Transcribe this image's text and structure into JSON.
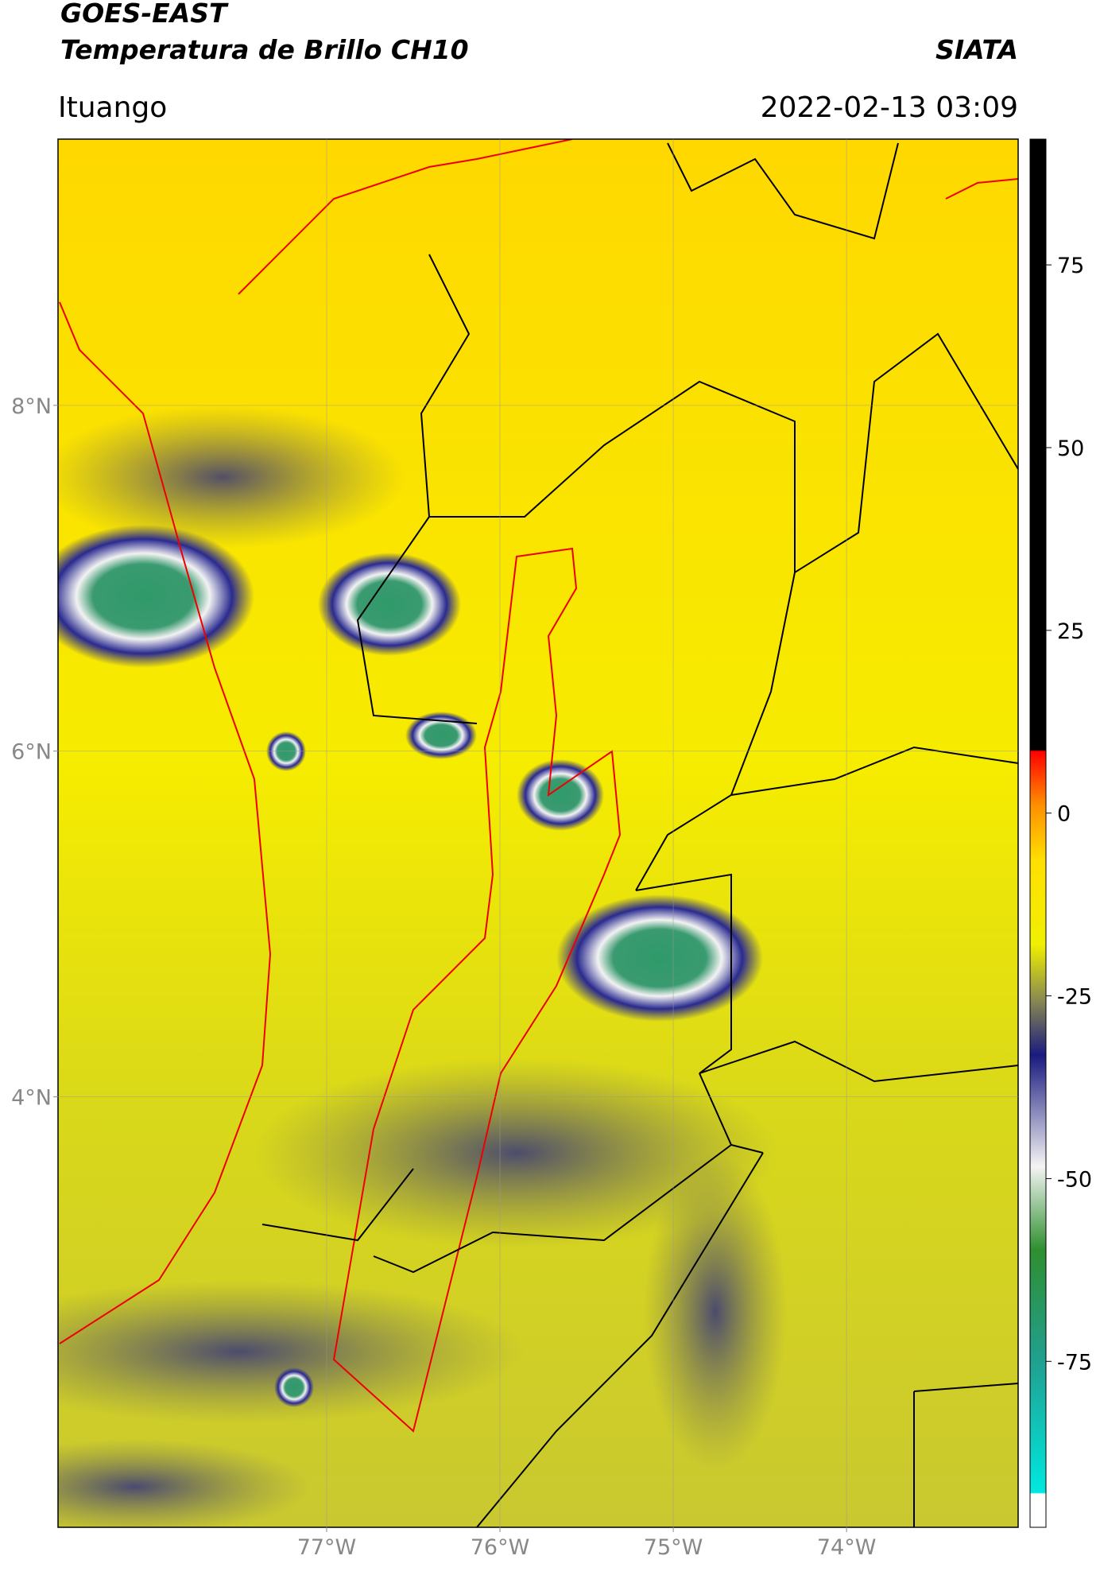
{
  "header": {
    "title": "GOES-EAST",
    "subtitle": "Temperatura de Brillo CH10",
    "source": "SIATA",
    "location": "Ituango",
    "timestamp": "2022-02-13 03:09"
  },
  "map": {
    "xlim": [
      -78.55,
      -73.01
    ],
    "ylim": [
      1.51,
      9.54
    ],
    "xticks": [
      {
        "value": -77,
        "label": "77°W"
      },
      {
        "value": -76,
        "label": "76°W"
      },
      {
        "value": -75,
        "label": "75°W"
      },
      {
        "value": -74,
        "label": "74°W"
      }
    ],
    "yticks": [
      {
        "value": 8,
        "label": "8°N"
      },
      {
        "value": 6,
        "label": "6°N"
      },
      {
        "value": 4,
        "label": "4°N"
      }
    ],
    "grid": true
  },
  "colorbar": {
    "lim": [
      -97.7,
      92.2
    ],
    "ticks": [
      75,
      50,
      25,
      0,
      -25,
      -50,
      -75
    ]
  }
}
